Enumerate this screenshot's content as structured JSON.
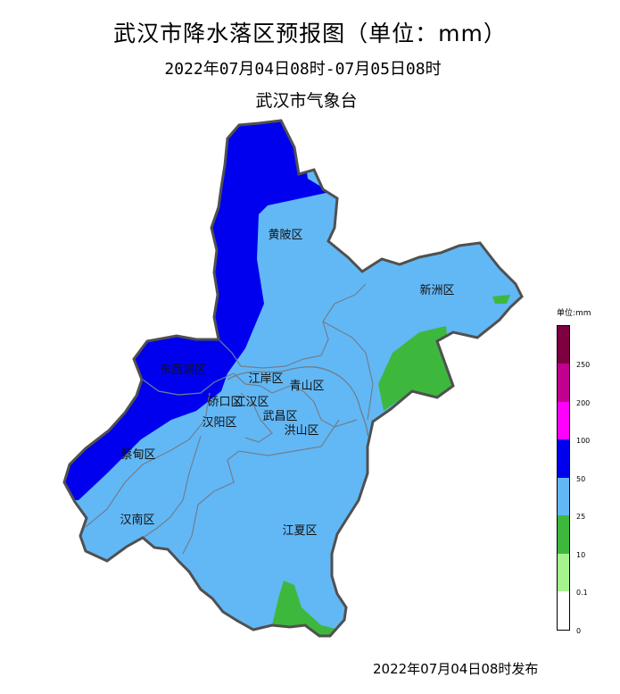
{
  "header": {
    "title": "武汉市降水落区预报图（单位：mm）",
    "period": "2022年07月04日08时-07月05日08时",
    "agency": "武汉市气象台"
  },
  "districts": [
    {
      "key": "huangpi",
      "label": "黄陂区"
    },
    {
      "key": "xinzhou",
      "label": "新洲区"
    },
    {
      "key": "dongxihu",
      "label": "东西湖区"
    },
    {
      "key": "jiangan",
      "label": "江岸区"
    },
    {
      "key": "qingshan",
      "label": "青山区"
    },
    {
      "key": "qiaokou",
      "label": "硚口区"
    },
    {
      "key": "jianghan",
      "label": "江汉区"
    },
    {
      "key": "hanyang",
      "label": "汉阳区"
    },
    {
      "key": "wuchang",
      "label": "武昌区"
    },
    {
      "key": "hongshan",
      "label": "洪山区"
    },
    {
      "key": "caidian",
      "label": "蔡甸区"
    },
    {
      "key": "hannan",
      "label": "汉南区"
    },
    {
      "key": "jiangxia",
      "label": "江夏区"
    }
  ],
  "legend": {
    "title": "单位:mm",
    "classes": [
      {
        "range": "0-0.1",
        "color": "#ffffff"
      },
      {
        "range": "0.1-10",
        "color": "#a6f28f"
      },
      {
        "range": "10-25",
        "color": "#3db83d"
      },
      {
        "range": "25-50",
        "color": "#62b8f5"
      },
      {
        "range": "50-100",
        "color": "#0000ef"
      },
      {
        "range": "100-200",
        "color": "#ff00ff"
      },
      {
        "range": "200-250",
        "color": "#c0008f"
      },
      {
        "range": "250+",
        "color": "#7f0041"
      }
    ],
    "ticks": [
      "0",
      "0.1",
      "10",
      "25",
      "50",
      "100",
      "200",
      "250"
    ]
  },
  "footer": {
    "issued": "2022年07月04日08时发布"
  }
}
